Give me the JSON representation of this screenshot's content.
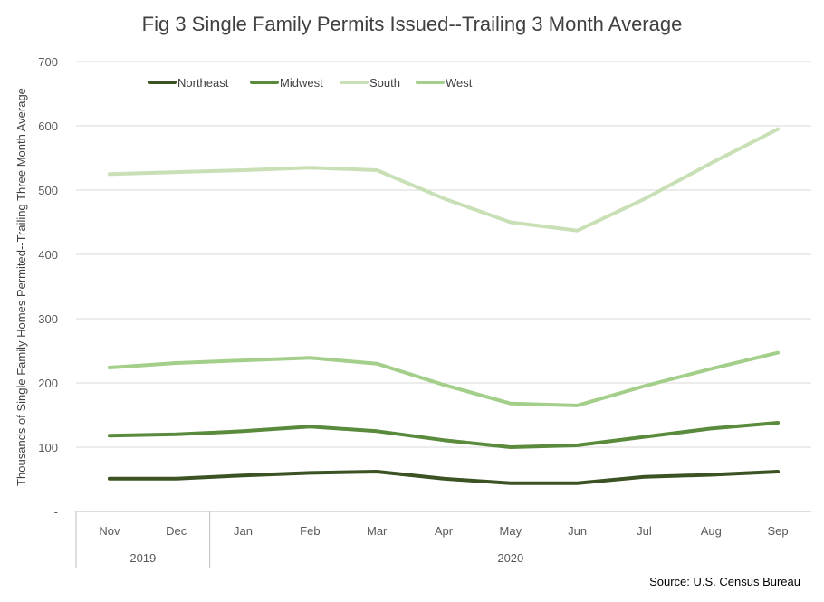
{
  "chart_data": {
    "type": "line",
    "title": "Fig 3 Single Family Permits Issued--Trailing 3 Month Average",
    "ylabel": "Thousands of Single Family Homes Permited--Trailing Three Month Average",
    "xlabel": "",
    "ylim": [
      0,
      700
    ],
    "yticks": [
      {
        "value": 0,
        "label": "-"
      },
      {
        "value": 100,
        "label": "100"
      },
      {
        "value": 200,
        "label": "200"
      },
      {
        "value": 300,
        "label": "300"
      },
      {
        "value": 400,
        "label": "400"
      },
      {
        "value": 500,
        "label": "500"
      },
      {
        "value": 600,
        "label": "600"
      },
      {
        "value": 700,
        "label": "700"
      }
    ],
    "categories": [
      "Nov",
      "Dec",
      "Jan",
      "Feb",
      "Mar",
      "Apr",
      "May",
      "Jun",
      "Jul",
      "Aug",
      "Sep"
    ],
    "year_groups": [
      {
        "label": "2019",
        "count": 2
      },
      {
        "label": "2020",
        "count": 9
      }
    ],
    "grid": true,
    "legend_position": "top-left",
    "series": [
      {
        "name": "Northeast",
        "color": "#3b5323",
        "values": [
          51,
          51,
          56,
          60,
          62,
          51,
          44,
          44,
          54,
          57,
          62
        ]
      },
      {
        "name": "Midwest",
        "color": "#5a8a3c",
        "values": [
          118,
          120,
          125,
          132,
          125,
          111,
          100,
          103,
          116,
          129,
          138
        ]
      },
      {
        "name": "South",
        "color": "#c9e0b6",
        "values": [
          525,
          528,
          531,
          535,
          531,
          487,
          450,
          437,
          486,
          542,
          595
        ]
      },
      {
        "name": "West",
        "color": "#a3cf8a",
        "values": [
          224,
          231,
          235,
          239,
          230,
          197,
          168,
          165,
          195,
          222,
          247
        ]
      }
    ],
    "source": "Source: U.S. Census Bureau"
  }
}
